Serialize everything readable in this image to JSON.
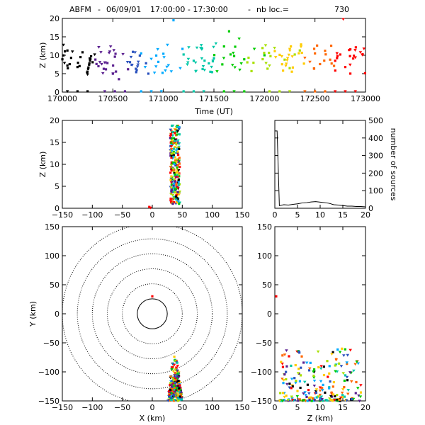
{
  "title": {
    "station": "ABFM",
    "date": "06/09/01",
    "time_range": "17:00:00 - 17:30:00",
    "count_label": "nb loc.=",
    "count": "730"
  },
  "chart_data": [
    {
      "type": "scatter",
      "xlabel": "Time (UT)",
      "ylabel": "Z (km)",
      "xlim": [
        170000,
        173000
      ],
      "ylim": [
        0,
        20
      ],
      "xticks": [
        "170000",
        "170500",
        "171000",
        "171500",
        "172000",
        "172500",
        "173000"
      ],
      "yticks": [
        "0",
        "5",
        "10",
        "15",
        "20"
      ],
      "colormap": "rainbow by time",
      "notes": "Sources distributed across 17:00-17:30; a row of points near Z≈0 throughout.",
      "series": [
        {
          "x": [
            170050,
            170100,
            170150,
            170180,
            170200,
            170250,
            170300,
            170320
          ],
          "y": [
            7.2,
            11,
            6.8,
            9.5,
            10.8,
            4.8,
            8.1,
            10.2
          ]
        },
        {
          "x": [
            170420,
            170470,
            170500,
            170520,
            170560,
            170600,
            170650
          ],
          "y": [
            8,
            11,
            5,
            9.6,
            3.5,
            10.3,
            6.2
          ]
        },
        {
          "x": [
            170780,
            170820,
            170880,
            170950,
            171000,
            171050,
            171100
          ],
          "y": [
            10.5,
            6.8,
            9,
            8.2,
            10.4,
            7.3,
            19.5
          ]
        },
        {
          "x": [
            171200,
            171300,
            171380,
            171450,
            171500,
            171520
          ],
          "y": [
            10.2,
            8.5,
            11.6,
            7.8,
            9.2,
            13.2
          ]
        },
        {
          "x": [
            171600,
            171650,
            171700,
            171750,
            171800,
            171900,
            172000
          ],
          "y": [
            12.4,
            16.5,
            9.8,
            14.5,
            8.9,
            11.7,
            10
          ]
        },
        {
          "x": [
            172050,
            172100,
            172200,
            172250,
            172300,
            172350
          ],
          "y": [
            7.2,
            12,
            8.8,
            6.5,
            10.2,
            11.3
          ]
        },
        {
          "x": [
            172400,
            172450,
            172500,
            172550,
            172600,
            172650
          ],
          "y": [
            9.3,
            8.2,
            10.5,
            7.6,
            11.2,
            8.8
          ]
        },
        {
          "x": [
            172700,
            172750,
            172780,
            172800,
            172850,
            172900,
            172950
          ],
          "y": [
            8.5,
            10.2,
            19.8,
            6.8,
            11.6,
            9.4,
            10.8
          ]
        }
      ]
    },
    {
      "type": "scatter",
      "xlabel": "",
      "ylabel": "Z (km)",
      "xlim": [
        -150,
        150
      ],
      "ylim": [
        0,
        20
      ],
      "xticks": [
        "−150",
        "−100",
        "−50",
        "0",
        "50",
        "100",
        "150"
      ],
      "yticks": [
        "0",
        "5",
        "10",
        "15",
        "20"
      ],
      "description": "Dense vertical band of sources around X≈30-50 km from Z≈1 to 19; isolated points near X≈−5, Z≈0.",
      "band": {
        "x_center": 38,
        "x_width": 16,
        "z_min": 1,
        "z_max": 19
      },
      "isolated_points": [
        {
          "x": -5,
          "z": 0.3
        },
        {
          "x": -3,
          "z": 0.1
        }
      ]
    },
    {
      "type": "line",
      "xlabel": "",
      "ylabel": "number of sources",
      "xlim": [
        0,
        20
      ],
      "ylim": [
        0,
        500
      ],
      "xticks": [
        "0",
        "5",
        "10",
        "15",
        "20"
      ],
      "yticks": [
        "0",
        "100",
        "200",
        "300",
        "400",
        "500"
      ],
      "x": [
        0,
        0.5,
        1,
        2,
        3,
        4,
        5,
        6,
        7,
        8,
        9,
        10,
        11,
        12,
        13,
        14,
        15,
        16,
        17,
        18,
        19,
        20
      ],
      "values": [
        440,
        440,
        15,
        20,
        18,
        22,
        25,
        30,
        32,
        36,
        38,
        35,
        32,
        28,
        20,
        18,
        15,
        12,
        12,
        10,
        10,
        8
      ]
    },
    {
      "type": "scatter",
      "xlabel": "X (km)",
      "ylabel": "Y (km)",
      "xlim": [
        -150,
        150
      ],
      "ylim": [
        -150,
        150
      ],
      "xticks": [
        "−150",
        "−100",
        "−50",
        "0",
        "50",
        "100",
        "150"
      ],
      "yticks": [
        "−150",
        "−100",
        "−50",
        "0",
        "50",
        "100",
        "150"
      ],
      "range_rings_km": [
        25,
        50,
        75,
        100,
        125,
        150
      ],
      "cluster": {
        "x_center": 38,
        "y_top": -70,
        "y_bottom": -150
      },
      "isolated_points": [
        {
          "x": 0,
          "y": 30
        }
      ]
    },
    {
      "type": "scatter",
      "xlabel": "Z (km)",
      "ylabel": "",
      "xlim": [
        0,
        20
      ],
      "ylim": [
        -150,
        150
      ],
      "xticks": [
        "0",
        "5",
        "10",
        "15",
        "20"
      ],
      "yticks": [
        "−150",
        "−100",
        "−50",
        "0",
        "50",
        "100",
        "150"
      ],
      "cluster": {
        "z_min": 1,
        "z_max": 19,
        "y_top": -60,
        "y_bottom": -150
      },
      "isolated_points": [
        {
          "z": 0.3,
          "y": 30
        }
      ]
    }
  ],
  "colors": {
    "axis": "#000000",
    "rainbow": [
      "#000000",
      "#5a1f8f",
      "#2a52be",
      "#00aaff",
      "#00c8a8",
      "#00cc00",
      "#a8e000",
      "#ffcc00",
      "#ff6600",
      "#ff0000"
    ]
  }
}
